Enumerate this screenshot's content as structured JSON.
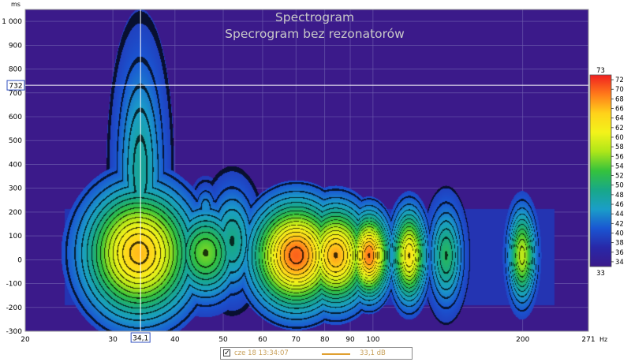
{
  "chart_data": {
    "type": "heatmap",
    "title": "Spectrogram",
    "subtitle": "Specrogram bez rezonatorów",
    "x_unit": "Hz",
    "y_unit": "ms",
    "x_scale": "log",
    "xlim": [
      20,
      271
    ],
    "ylim": [
      -300,
      1050
    ],
    "x_ticks": [
      "20",
      "30",
      "40",
      "50",
      "60",
      "70",
      "80",
      "90",
      "100",
      "200",
      "271"
    ],
    "y_ticks": [
      "1 000",
      "900",
      "800",
      "700",
      "600",
      "500",
      "400",
      "300",
      "200",
      "100",
      "0",
      "-100",
      "-200",
      "-300"
    ],
    "color_scale": {
      "min_label": "33",
      "max_label": "73",
      "ticks": [
        "72",
        "70",
        "68",
        "66",
        "64",
        "62",
        "60",
        "58",
        "56",
        "54",
        "52",
        "50",
        "48",
        "46",
        "44",
        "42",
        "40",
        "38",
        "36",
        "34"
      ],
      "colors": [
        "#f02020",
        "#ff7a1a",
        "#ffd21a",
        "#f3f31a",
        "#aee619",
        "#35c23c",
        "#18a888",
        "#1a9ec8",
        "#1a56d2",
        "#2828a8",
        "#3b1a8a"
      ]
    },
    "cursor": {
      "x_label": "34,1",
      "y_label": "732"
    },
    "blobs": [
      {
        "f": 33.8,
        "t": 30,
        "rf": 0.16,
        "rt": 170,
        "db": 66
      },
      {
        "f": 34.0,
        "t": 380,
        "rf": 0.07,
        "rt": 300,
        "db": 48
      },
      {
        "f": 46.0,
        "t": 30,
        "rf": 0.1,
        "rt": 120,
        "db": 55
      },
      {
        "f": 46.0,
        "t": 220,
        "rf": 0.035,
        "rt": 60,
        "db": 44
      },
      {
        "f": 52.0,
        "t": 80,
        "rf": 0.07,
        "rt": 140,
        "db": 49
      },
      {
        "f": 70.0,
        "t": 20,
        "rf": 0.13,
        "rt": 140,
        "db": 70
      },
      {
        "f": 84.0,
        "t": 20,
        "rf": 0.1,
        "rt": 130,
        "db": 67
      },
      {
        "f": 98.0,
        "t": 20,
        "rf": 0.06,
        "rt": 110,
        "db": 69
      },
      {
        "f": 118.0,
        "t": 20,
        "rf": 0.05,
        "rt": 120,
        "db": 63
      },
      {
        "f": 140.0,
        "t": 20,
        "rf": 0.05,
        "rt": 130,
        "db": 51
      },
      {
        "f": 199.0,
        "t": 20,
        "rf": 0.04,
        "rt": 120,
        "db": 58
      }
    ],
    "bands": [
      {
        "f1": 24,
        "f2": 231,
        "t1": -190,
        "t2": 215,
        "db": 38
      }
    ]
  },
  "legend": {
    "entry_name": "cze 18 13:34:07",
    "entry_value": "33,1 dB",
    "entry_color": "#e0a030",
    "checked_glyph": "✓"
  },
  "plot": {
    "background": "#3b1a8a",
    "grid_color": "#7060b0"
  }
}
